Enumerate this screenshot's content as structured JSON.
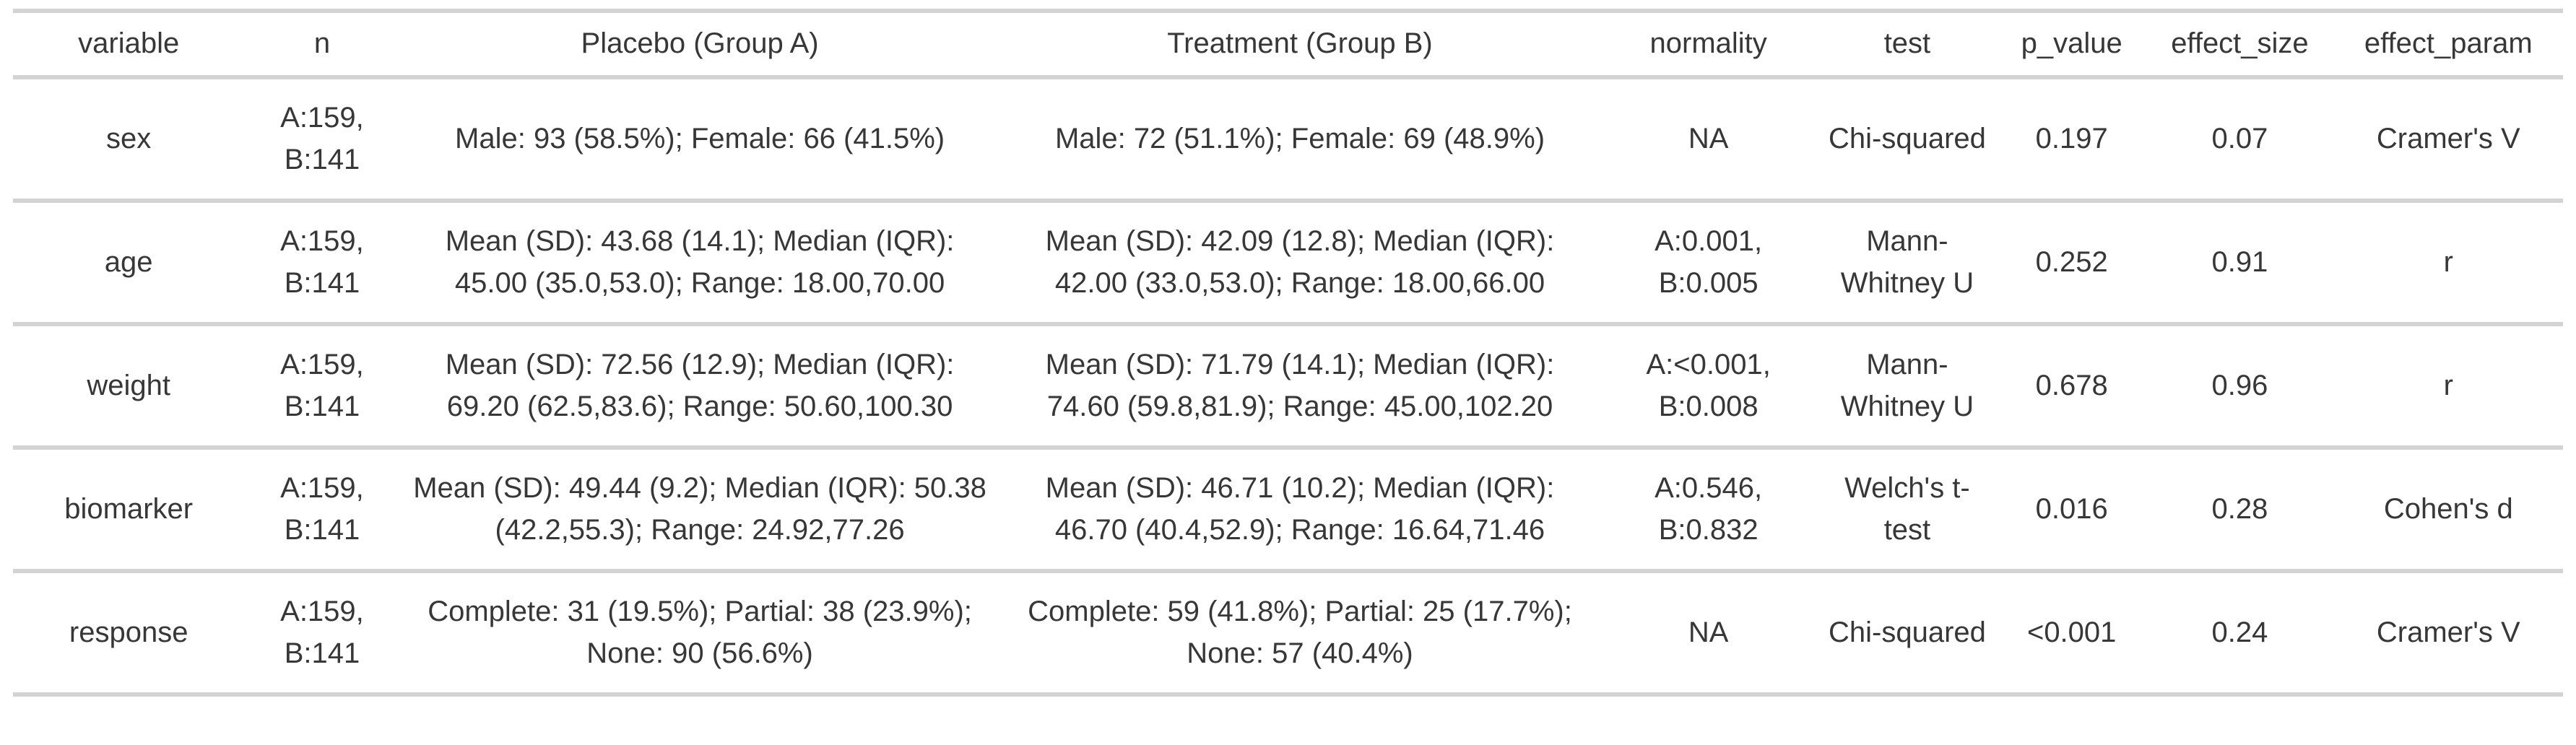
{
  "chart_data": {
    "type": "table",
    "columns": [
      "variable",
      "n",
      "Placebo (Group A)",
      "Treatment (Group B)",
      "normality",
      "test",
      "p_value",
      "effect_size",
      "effect_param"
    ],
    "rows": [
      [
        "sex",
        "A:159, B:141",
        "Male: 93 (58.5%); Female: 66 (41.5%)",
        "Male: 72 (51.1%); Female: 69 (48.9%)",
        "NA",
        "Chi-squared",
        "0.197",
        "0.07",
        "Cramer's V"
      ],
      [
        "age",
        "A:159, B:141",
        "Mean (SD): 43.68 (14.1); Median (IQR): 45.00 (35.0,53.0); Range: 18.00,70.00",
        "Mean (SD): 42.09 (12.8); Median (IQR): 42.00 (33.0,53.0); Range: 18.00,66.00",
        "A:0.001, B:0.005",
        "Mann-Whitney U",
        "0.252",
        "0.91",
        "r"
      ],
      [
        "weight",
        "A:159, B:141",
        "Mean (SD): 72.56 (12.9); Median (IQR): 69.20 (62.5,83.6); Range: 50.60,100.30",
        "Mean (SD): 71.79 (14.1); Median (IQR): 74.60 (59.8,81.9); Range: 45.00,102.20",
        "A:<0.001, B:0.008",
        "Mann-Whitney U",
        "0.678",
        "0.96",
        "r"
      ],
      [
        "biomarker",
        "A:159, B:141",
        "Mean (SD): 49.44 (9.2); Median (IQR): 50.38 (42.2,55.3); Range: 24.92,77.26",
        "Mean (SD): 46.71 (10.2); Median (IQR): 46.70 (40.4,52.9); Range: 16.64,71.46",
        "A:0.546, B:0.832",
        "Welch's t-test",
        "0.016",
        "0.28",
        "Cohen's d"
      ],
      [
        "response",
        "A:159, B:141",
        "Complete: 31 (19.5%); Partial: 38 (23.9%); None: 90 (56.6%)",
        "Complete: 59 (41.8%); Partial: 25 (17.7%); None: 57 (40.4%)",
        "NA",
        "Chi-squared",
        "<0.001",
        "0.24",
        "Cramer's V"
      ]
    ],
    "layout": {
      "grid": "horizontal-rules-only",
      "text_align": "center"
    }
  },
  "colors": {
    "background": "#ffffff",
    "border": "#d3d3d3",
    "text": "#373737"
  }
}
